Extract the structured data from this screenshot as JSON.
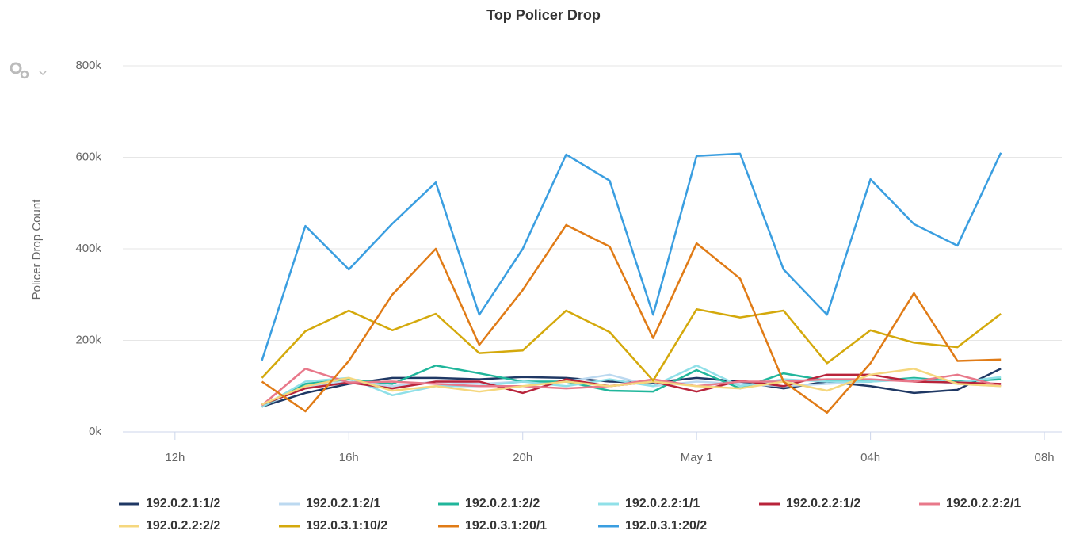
{
  "chart_data": {
    "type": "line",
    "title": "Top Policer Drop",
    "ylabel": "Policer Drop Count",
    "x": [
      14,
      15,
      16,
      17,
      18,
      19,
      20,
      21,
      22,
      23,
      24,
      25,
      26,
      27,
      28,
      29,
      30,
      31
    ],
    "xlim": [
      10.8,
      32.4
    ],
    "xticks": [
      {
        "value": 12,
        "label": "12h"
      },
      {
        "value": 16,
        "label": "16h"
      },
      {
        "value": 20,
        "label": "20h"
      },
      {
        "value": 24,
        "label": "May 1"
      },
      {
        "value": 28,
        "label": "04h"
      },
      {
        "value": 32,
        "label": "08h"
      }
    ],
    "ylim": [
      0,
      800000
    ],
    "yticks": [
      {
        "value": 0,
        "label": "0k"
      },
      {
        "value": 200000,
        "label": "200k"
      },
      {
        "value": 400000,
        "label": "400k"
      },
      {
        "value": 600000,
        "label": "600k"
      },
      {
        "value": 800000,
        "label": "800k"
      }
    ],
    "grid": true,
    "legend": "bottom",
    "series": [
      {
        "name": "192.0.2.1:1/2",
        "color": "#1f3864",
        "values": [
          55000,
          85000,
          105000,
          118000,
          118000,
          115000,
          120000,
          118000,
          110000,
          108000,
          118000,
          110000,
          95000,
          110000,
          100000,
          85000,
          92000,
          138000
        ]
      },
      {
        "name": "192.0.2.1:2/1",
        "color": "#bcd9f0",
        "values": [
          55000,
          100000,
          110000,
          100000,
          110000,
          105000,
          110000,
          110000,
          125000,
          100000,
          110000,
          105000,
          100000,
          105000,
          110000,
          115000,
          105000,
          100000
        ]
      },
      {
        "name": "192.0.2.1:2/2",
        "color": "#20b69b",
        "values": [
          55000,
          105000,
          115000,
          105000,
          145000,
          128000,
          110000,
          110000,
          90000,
          88000,
          135000,
          95000,
          128000,
          112000,
          110000,
          118000,
          110000,
          115000
        ]
      },
      {
        "name": "192.0.2.2:1/1",
        "color": "#90e0e8",
        "values": [
          55000,
          110000,
          118000,
          80000,
          100000,
          100000,
          110000,
          100000,
          115000,
          100000,
          145000,
          100000,
          115000,
          110000,
          110000,
          115000,
          108000,
          120000
        ]
      },
      {
        "name": "192.0.2.2:1/2",
        "color": "#b8233a",
        "values": [
          60000,
          95000,
          108000,
          95000,
          110000,
          110000,
          85000,
          115000,
          100000,
          110000,
          88000,
          112000,
          100000,
          125000,
          125000,
          110000,
          108000,
          105000
        ]
      },
      {
        "name": "192.0.2.2:2/1",
        "color": "#e8788a",
        "values": [
          58000,
          138000,
          108000,
          110000,
          105000,
          100000,
          100000,
          95000,
          100000,
          115000,
          100000,
          110000,
          110000,
          115000,
          115000,
          110000,
          125000,
          100000
        ]
      },
      {
        "name": "192.0.2.2:2/2",
        "color": "#f5d77e",
        "values": [
          60000,
          100000,
          118000,
          90000,
          100000,
          88000,
          100000,
          110000,
          100000,
          110000,
          100000,
          95000,
          110000,
          90000,
          125000,
          138000,
          105000,
          100000
        ]
      },
      {
        "name": "192.0.3.1:10/2",
        "color": "#d4a90c",
        "values": [
          118000,
          220000,
          265000,
          222000,
          258000,
          172000,
          178000,
          265000,
          218000,
          112000,
          268000,
          250000,
          265000,
          150000,
          222000,
          195000,
          185000,
          258000
        ]
      },
      {
        "name": "192.0.3.1:20/1",
        "color": "#e07b16",
        "values": [
          110000,
          45000,
          155000,
          300000,
          400000,
          190000,
          310000,
          452000,
          405000,
          205000,
          412000,
          335000,
          110000,
          42000,
          150000,
          303000,
          155000,
          158000
        ]
      },
      {
        "name": "192.0.3.1:20/2",
        "color": "#3a9ee0",
        "values": [
          156000,
          450000,
          355000,
          455000,
          545000,
          256000,
          400000,
          606000,
          549000,
          256000,
          603000,
          608000,
          355000,
          256000,
          552000,
          454000,
          407000,
          610000
        ]
      }
    ]
  }
}
